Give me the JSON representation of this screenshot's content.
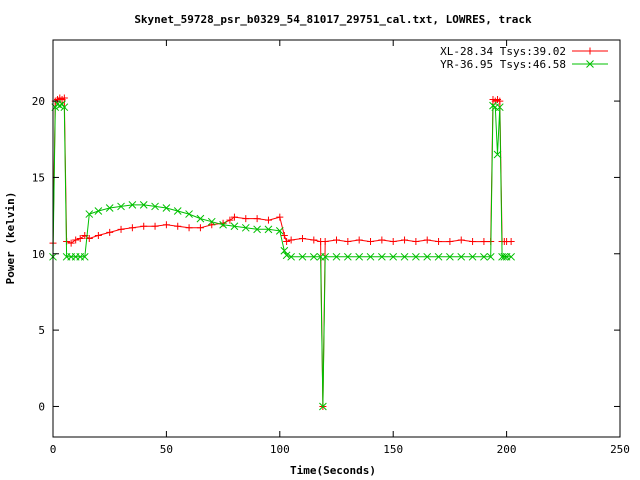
{
  "chart_data": {
    "type": "line",
    "title": "Skynet_59728_psr_b0329_54_81017_29751_cal.txt, LOWRES, track",
    "xlabel": "Time(Seconds)",
    "ylabel": "Power (kelvin)",
    "xlim": [
      0,
      250
    ],
    "ylim": [
      -2,
      24
    ],
    "x_ticks": [
      0,
      50,
      100,
      150,
      200,
      250
    ],
    "y_ticks": [
      0,
      5,
      10,
      15,
      20
    ],
    "x_tick_labels": [
      "0",
      "50",
      "100",
      "150",
      "200",
      "250"
    ],
    "y_tick_labels": [
      "0",
      "5",
      "10",
      "15",
      "20"
    ],
    "legend_position": "top-right",
    "grid": false,
    "series": [
      {
        "name": "XL-28.34 Tsys:39.02",
        "color": "#ff0000",
        "marker": "plus",
        "x": [
          0,
          1,
          2,
          3,
          4,
          5,
          6,
          8,
          10,
          12,
          14,
          16,
          20,
          25,
          30,
          35,
          40,
          45,
          50,
          55,
          60,
          65,
          70,
          75,
          78,
          80,
          85,
          90,
          95,
          100,
          102,
          103,
          105,
          110,
          115,
          118,
          119,
          120,
          125,
          130,
          135,
          140,
          145,
          150,
          155,
          160,
          165,
          170,
          175,
          180,
          185,
          190,
          193,
          194,
          195,
          196,
          197,
          198,
          199,
          200,
          202
        ],
        "y": [
          10.7,
          20.0,
          20.1,
          20.2,
          20.1,
          20.2,
          10.8,
          10.7,
          10.9,
          11.0,
          11.2,
          11.0,
          11.2,
          11.4,
          11.6,
          11.7,
          11.8,
          11.8,
          11.9,
          11.8,
          11.7,
          11.7,
          11.9,
          12.0,
          12.2,
          12.4,
          12.3,
          12.3,
          12.2,
          12.4,
          11.2,
          10.8,
          10.9,
          11.0,
          10.9,
          10.8,
          0.0,
          10.8,
          10.9,
          10.8,
          10.9,
          10.8,
          10.9,
          10.8,
          10.9,
          10.8,
          10.9,
          10.8,
          10.8,
          10.9,
          10.8,
          10.8,
          10.8,
          20.1,
          20.0,
          20.1,
          20.0,
          10.8,
          10.8,
          10.8,
          10.8
        ]
      },
      {
        "name": "YR-36.95 Tsys:46.58",
        "color": "#00c000",
        "marker": "cross",
        "x": [
          0,
          1,
          2,
          3,
          4,
          5,
          6,
          8,
          10,
          12,
          14,
          16,
          20,
          25,
          30,
          35,
          40,
          45,
          50,
          55,
          60,
          65,
          70,
          75,
          80,
          85,
          90,
          95,
          100,
          102,
          103,
          105,
          110,
          115,
          118,
          119,
          120,
          125,
          130,
          135,
          140,
          145,
          150,
          155,
          160,
          165,
          170,
          175,
          180,
          185,
          190,
          193,
          194,
          195,
          196,
          197,
          198,
          199,
          200,
          202
        ],
        "y": [
          9.8,
          19.6,
          19.8,
          19.7,
          19.8,
          19.6,
          9.8,
          9.8,
          9.8,
          9.8,
          9.8,
          12.6,
          12.8,
          13.0,
          13.1,
          13.2,
          13.2,
          13.1,
          13.0,
          12.8,
          12.6,
          12.3,
          12.1,
          11.9,
          11.8,
          11.7,
          11.6,
          11.6,
          11.5,
          10.2,
          9.9,
          9.8,
          9.8,
          9.8,
          9.8,
          0.0,
          9.8,
          9.8,
          9.8,
          9.8,
          9.8,
          9.8,
          9.8,
          9.8,
          9.8,
          9.8,
          9.8,
          9.8,
          9.8,
          9.8,
          9.8,
          9.8,
          19.7,
          19.6,
          16.5,
          19.6,
          9.8,
          9.8,
          9.8,
          9.8
        ]
      }
    ]
  }
}
